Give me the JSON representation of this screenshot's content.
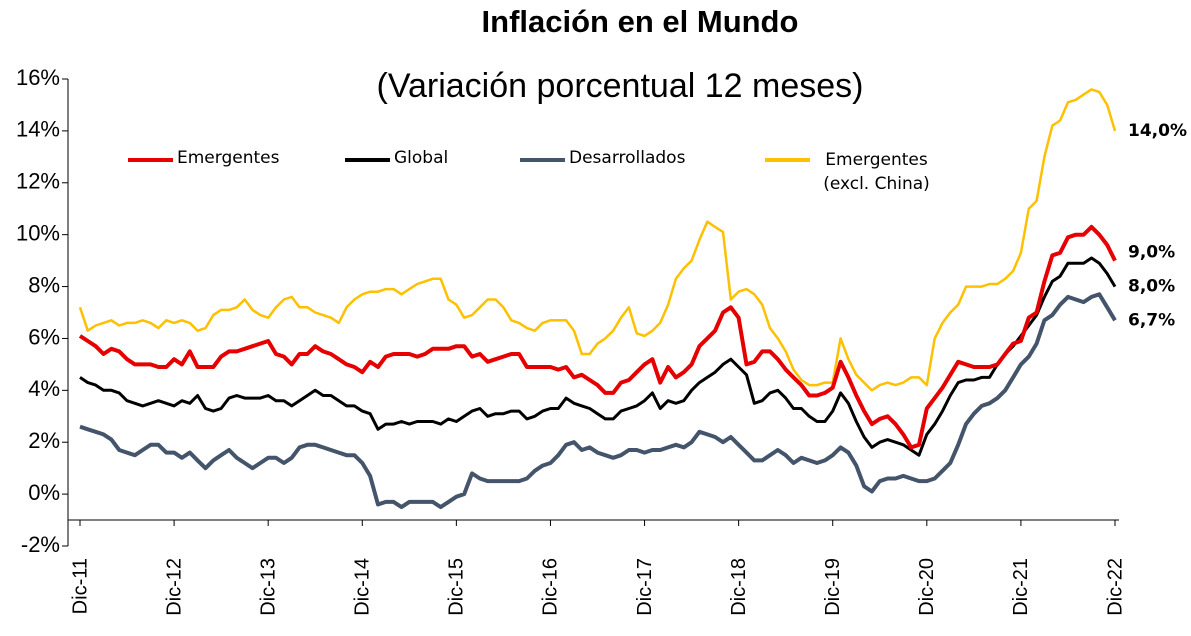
{
  "chart_data": {
    "type": "line",
    "title": "Inflación en el Mundo",
    "subtitle": "(Variación porcentual 12 meses)",
    "categories": [
      "Dic-11",
      null,
      null,
      null,
      null,
      null,
      null,
      null,
      null,
      null,
      null,
      null,
      "Dic-12",
      null,
      null,
      null,
      null,
      null,
      null,
      null,
      null,
      null,
      null,
      null,
      "Dic-13",
      null,
      null,
      null,
      null,
      null,
      null,
      null,
      null,
      null,
      null,
      null,
      "Dic-14",
      null,
      null,
      null,
      null,
      null,
      null,
      null,
      null,
      null,
      null,
      null,
      "Dic-15",
      null,
      null,
      null,
      null,
      null,
      null,
      null,
      null,
      null,
      null,
      null,
      "Dic-16",
      null,
      null,
      null,
      null,
      null,
      null,
      null,
      null,
      null,
      null,
      null,
      "Dic-17",
      null,
      null,
      null,
      null,
      null,
      null,
      null,
      null,
      null,
      null,
      null,
      "Dic-18",
      null,
      null,
      null,
      null,
      null,
      null,
      null,
      null,
      null,
      null,
      null,
      "Dic-19",
      null,
      null,
      null,
      null,
      null,
      null,
      null,
      null,
      null,
      null,
      null,
      "Dic-20",
      null,
      null,
      null,
      null,
      null,
      null,
      null,
      null,
      null,
      null,
      null,
      "Dic-21",
      null,
      null,
      null,
      null,
      null,
      null,
      null,
      null,
      null,
      null,
      null,
      "Dic-22"
    ],
    "ylim": [
      -2,
      16
    ],
    "yticks": [
      {
        "value": -2,
        "label": "-2%"
      },
      {
        "value": 0,
        "label": "0%"
      },
      {
        "value": 2,
        "label": "2%"
      },
      {
        "value": 4,
        "label": "4%"
      },
      {
        "value": 6,
        "label": "6%"
      },
      {
        "value": 8,
        "label": "8%"
      },
      {
        "value": 10,
        "label": "10%"
      },
      {
        "value": 12,
        "label": "12%"
      },
      {
        "value": 14,
        "label": "14%"
      },
      {
        "value": 16,
        "label": "16%"
      }
    ],
    "grid": false,
    "series": [
      {
        "name": "Emergentes",
        "color": "#e60000",
        "width": 4,
        "values": [
          6.1,
          5.9,
          5.7,
          5.4,
          5.6,
          5.5,
          5.2,
          5.0,
          5.0,
          5.0,
          4.9,
          4.9,
          5.2,
          5.0,
          5.5,
          4.9,
          4.9,
          4.9,
          5.3,
          5.5,
          5.5,
          5.6,
          5.7,
          5.8,
          5.9,
          5.4,
          5.3,
          5.0,
          5.4,
          5.4,
          5.7,
          5.5,
          5.4,
          5.2,
          5.0,
          4.9,
          4.7,
          5.1,
          4.9,
          5.3,
          5.4,
          5.4,
          5.4,
          5.3,
          5.4,
          5.6,
          5.6,
          5.6,
          5.7,
          5.7,
          5.3,
          5.4,
          5.1,
          5.2,
          5.3,
          5.4,
          5.4,
          4.9,
          4.9,
          4.9,
          4.9,
          4.8,
          4.9,
          4.5,
          4.6,
          4.4,
          4.2,
          3.9,
          3.9,
          4.3,
          4.4,
          4.7,
          5.0,
          5.2,
          4.3,
          4.9,
          4.5,
          4.7,
          5.0,
          5.7,
          6.0,
          6.3,
          7.0,
          7.2,
          6.8,
          5.0,
          5.1,
          5.5,
          5.5,
          5.2,
          4.8,
          4.5,
          4.2,
          3.8,
          3.8,
          3.9,
          4.1,
          5.1,
          4.5,
          3.8,
          3.2,
          2.7,
          2.9,
          3.0,
          2.7,
          2.3,
          1.8,
          1.9,
          3.3,
          3.7,
          4.1,
          4.6,
          5.1,
          5.0,
          4.9,
          4.9,
          4.9,
          5.0,
          5.4,
          5.8,
          5.9,
          6.8,
          7.0,
          8.2,
          9.2,
          9.3,
          9.9,
          10.0,
          10.0,
          10.3,
          10.0,
          9.6,
          9.0
        ],
        "value_labels": {
          "132": "9,0%"
        }
      },
      {
        "name": "Global",
        "color": "#000000",
        "width": 3,
        "values": [
          4.5,
          4.3,
          4.2,
          4.0,
          4.0,
          3.9,
          3.6,
          3.5,
          3.4,
          3.5,
          3.6,
          3.5,
          3.4,
          3.6,
          3.5,
          3.8,
          3.3,
          3.2,
          3.3,
          3.7,
          3.8,
          3.7,
          3.7,
          3.7,
          3.8,
          3.6,
          3.6,
          3.4,
          3.6,
          3.8,
          4.0,
          3.8,
          3.8,
          3.6,
          3.4,
          3.4,
          3.2,
          3.1,
          2.5,
          2.7,
          2.7,
          2.8,
          2.7,
          2.8,
          2.8,
          2.8,
          2.7,
          2.9,
          2.8,
          3.0,
          3.2,
          3.3,
          3.0,
          3.1,
          3.1,
          3.2,
          3.2,
          2.9,
          3.0,
          3.2,
          3.3,
          3.3,
          3.7,
          3.5,
          3.4,
          3.3,
          3.1,
          2.9,
          2.9,
          3.2,
          3.3,
          3.4,
          3.6,
          3.9,
          3.3,
          3.6,
          3.5,
          3.6,
          4.0,
          4.3,
          4.5,
          4.7,
          5.0,
          5.2,
          4.9,
          4.6,
          3.5,
          3.6,
          3.9,
          4.0,
          3.7,
          3.3,
          3.3,
          3.0,
          2.8,
          2.8,
          3.2,
          3.9,
          3.5,
          2.8,
          2.2,
          1.8,
          2.0,
          2.1,
          2.0,
          1.9,
          1.7,
          1.5,
          2.3,
          2.7,
          3.2,
          3.8,
          4.3,
          4.4,
          4.4,
          4.5,
          4.5,
          5.0,
          5.4,
          5.7,
          6.1,
          6.5,
          6.9,
          7.6,
          8.2,
          8.4,
          8.9,
          8.9,
          8.9,
          9.1,
          8.9,
          8.5,
          8.0
        ],
        "value_labels": {
          "132": "8,0%"
        }
      },
      {
        "name": "Desarrollados",
        "color": "#44546a",
        "width": 4,
        "values": [
          2.6,
          2.5,
          2.4,
          2.3,
          2.1,
          1.7,
          1.6,
          1.5,
          1.7,
          1.9,
          1.9,
          1.6,
          1.6,
          1.4,
          1.6,
          1.3,
          1.0,
          1.3,
          1.5,
          1.7,
          1.4,
          1.2,
          1.0,
          1.2,
          1.4,
          1.4,
          1.2,
          1.4,
          1.8,
          1.9,
          1.9,
          1.8,
          1.7,
          1.6,
          1.5,
          1.5,
          1.2,
          0.7,
          -0.4,
          -0.3,
          -0.3,
          -0.5,
          -0.3,
          -0.3,
          -0.3,
          -0.3,
          -0.5,
          -0.3,
          -0.1,
          0.0,
          0.8,
          0.6,
          0.5,
          0.5,
          0.5,
          0.5,
          0.5,
          0.6,
          0.9,
          1.1,
          1.2,
          1.5,
          1.9,
          2.0,
          1.7,
          1.8,
          1.6,
          1.5,
          1.4,
          1.5,
          1.7,
          1.7,
          1.6,
          1.7,
          1.7,
          1.8,
          1.9,
          1.8,
          2.0,
          2.4,
          2.3,
          2.2,
          2.0,
          2.2,
          1.9,
          1.6,
          1.3,
          1.3,
          1.5,
          1.7,
          1.5,
          1.2,
          1.4,
          1.3,
          1.2,
          1.3,
          1.5,
          1.8,
          1.6,
          1.1,
          0.3,
          0.1,
          0.5,
          0.6,
          0.6,
          0.7,
          0.6,
          0.5,
          0.5,
          0.6,
          0.9,
          1.2,
          1.9,
          2.7,
          3.1,
          3.4,
          3.5,
          3.7,
          4.0,
          4.5,
          5.0,
          5.3,
          5.8,
          6.7,
          6.9,
          7.3,
          7.6,
          7.5,
          7.4,
          7.6,
          7.7,
          7.2,
          6.7
        ],
        "value_labels": {
          "132": "6,7%"
        }
      },
      {
        "name": "Emergentes (excl. China)",
        "color": "#ffc000",
        "width": 2.5,
        "values": [
          7.2,
          6.3,
          6.5,
          6.6,
          6.7,
          6.5,
          6.6,
          6.6,
          6.7,
          6.6,
          6.4,
          6.7,
          6.6,
          6.7,
          6.6,
          6.3,
          6.4,
          6.9,
          7.1,
          7.1,
          7.2,
          7.5,
          7.1,
          6.9,
          6.8,
          7.2,
          7.5,
          7.6,
          7.2,
          7.2,
          7.0,
          6.9,
          6.8,
          6.6,
          7.2,
          7.5,
          7.7,
          7.8,
          7.8,
          7.9,
          7.9,
          7.7,
          7.9,
          8.1,
          8.2,
          8.3,
          8.3,
          7.5,
          7.3,
          6.8,
          6.9,
          7.2,
          7.5,
          7.5,
          7.2,
          6.7,
          6.6,
          6.4,
          6.3,
          6.6,
          6.7,
          6.7,
          6.7,
          6.3,
          5.4,
          5.4,
          5.8,
          6.0,
          6.3,
          6.8,
          7.2,
          6.2,
          6.1,
          6.3,
          6.6,
          7.3,
          8.3,
          8.7,
          9.0,
          9.8,
          10.5,
          10.3,
          10.1,
          7.5,
          7.8,
          7.9,
          7.7,
          7.3,
          6.4,
          6.0,
          5.5,
          4.8,
          4.4,
          4.2,
          4.2,
          4.3,
          4.3,
          6.0,
          5.2,
          4.6,
          4.3,
          4.0,
          4.2,
          4.3,
          4.2,
          4.3,
          4.5,
          4.5,
          4.2,
          6.0,
          6.6,
          7.0,
          7.3,
          8.0,
          8.0,
          8.0,
          8.1,
          8.1,
          8.3,
          8.6,
          9.3,
          11.0,
          11.3,
          13.0,
          14.2,
          14.4,
          15.1,
          15.2,
          15.4,
          15.6,
          15.5,
          15.0,
          14.0
        ],
        "value_labels": {
          "132": "14,0%"
        }
      }
    ]
  }
}
